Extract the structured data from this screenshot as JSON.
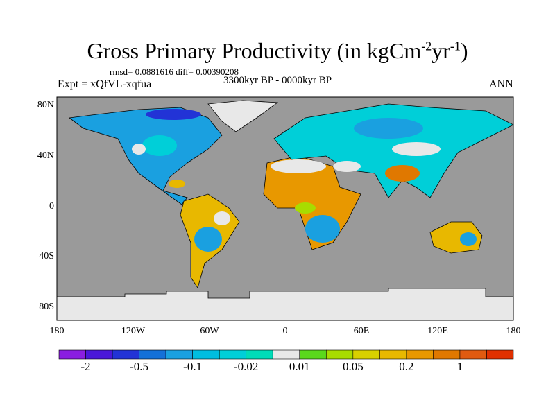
{
  "title": {
    "main": "Gross Primary Productivity (in kgCm",
    "exp1": "-2",
    "mid": "yr",
    "exp2": "-1",
    "end": ")"
  },
  "stats": "rmsd= 0.0881616 diff= 0.00390208",
  "experiment": "Expt = xQfVL-xqfua",
  "period": "3300kyr BP - 0000kyr BP",
  "season": "ANN",
  "chart_data": {
    "type": "heatmap",
    "subtype": "global map (cylindrical equidistant)",
    "title": "Gross Primary Productivity (in kgCm-2yr-1)",
    "lat_ticks": [
      "80N",
      "40N",
      "0",
      "40S",
      "80S"
    ],
    "lon_ticks": [
      "180",
      "120W",
      "60W",
      "0",
      "60E",
      "120E",
      "180"
    ],
    "xlim": [
      -180,
      180
    ],
    "ylim": [
      -90,
      90
    ],
    "missing_color": "#9a9a9a",
    "colorbar": {
      "labels": [
        "-2",
        "-0.5",
        "-0.1",
        "-0.02",
        "0.01",
        "0.05",
        "0.2",
        "1"
      ],
      "colors": [
        "#8a1ee0",
        "#4a17d9",
        "#2233d6",
        "#1470d8",
        "#1aa0e0",
        "#00bde0",
        "#00cfd8",
        "#00dcb8",
        "#e8e8e8",
        "#5ad81c",
        "#a8dc00",
        "#d8d000",
        "#e8b800",
        "#e89800",
        "#e07800",
        "#e05a10",
        "#e03000"
      ]
    }
  }
}
